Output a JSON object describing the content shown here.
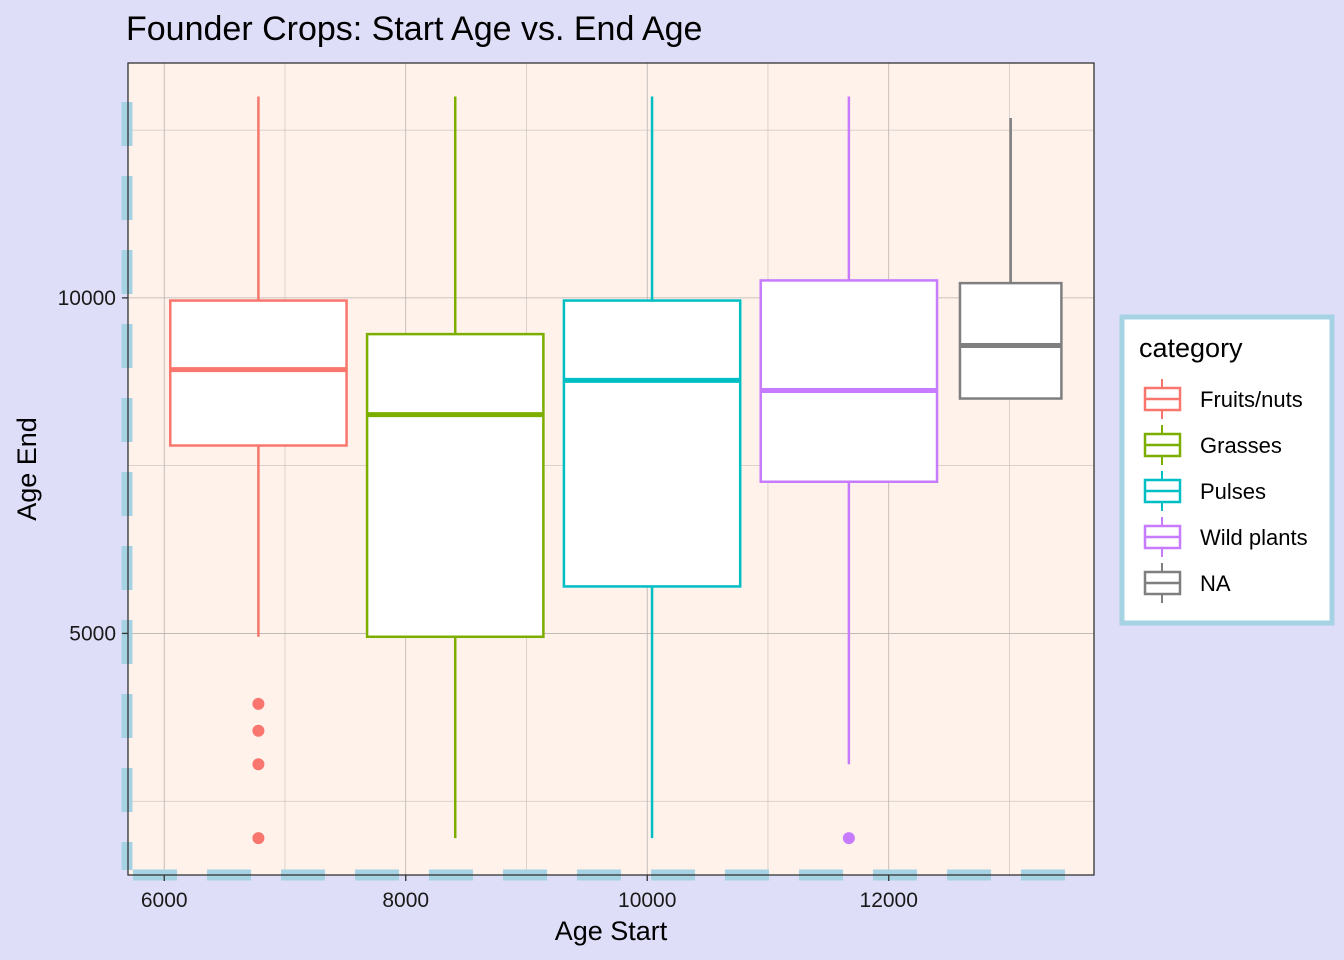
{
  "chart_data": {
    "type": "boxplot",
    "title": "Founder Crops: Start Age vs. End Age",
    "xlabel": "Age Start",
    "ylabel": "Age End",
    "xlim": [
      5700,
      13700
    ],
    "ylim": [
      1400,
      13500
    ],
    "x_ticks": [
      6000,
      8000,
      10000,
      12000
    ],
    "y_ticks": [
      5000,
      10000
    ],
    "grid": true,
    "legend": {
      "title": "category",
      "position": "right"
    },
    "series": [
      {
        "name": "Fruits/nuts",
        "color": "#f8766d",
        "x": 6780,
        "box_width": 1460,
        "whisker_low": 4950,
        "q1": 7800,
        "median": 8930,
        "q3": 9960,
        "whisker_high": 13000,
        "outliers": [
          3950,
          3550,
          3050,
          1950
        ]
      },
      {
        "name": "Grasses",
        "color": "#7cae00",
        "x": 8410,
        "box_width": 1460,
        "whisker_low": 1950,
        "q1": 4950,
        "median": 8260,
        "q3": 9460,
        "whisker_high": 13000,
        "outliers": []
      },
      {
        "name": "Pulses",
        "color": "#00bfc4",
        "x": 10040,
        "box_width": 1460,
        "whisker_low": 1950,
        "q1": 5700,
        "median": 8770,
        "q3": 9960,
        "whisker_high": 13000,
        "outliers": []
      },
      {
        "name": "Wild plants",
        "color": "#c77cff",
        "x": 11670,
        "box_width": 1460,
        "whisker_low": 3050,
        "q1": 7260,
        "median": 8620,
        "q3": 10260,
        "whisker_high": 13000,
        "outliers": [
          1950
        ]
      },
      {
        "name": "NA",
        "color": "#7f7f7f",
        "x": 13010,
        "box_width": 840,
        "whisker_low": 8500,
        "q1": 8500,
        "median": 9290,
        "q3": 10220,
        "whisker_high": 12680,
        "outliers": []
      }
    ]
  },
  "style": {
    "page_background": "#dfdef8",
    "panel_background": "#fff2ea",
    "grid_color": "#b8b3b0",
    "decoration_color": "#a6d3e3",
    "legend_border_color": "#a6d3e3"
  }
}
